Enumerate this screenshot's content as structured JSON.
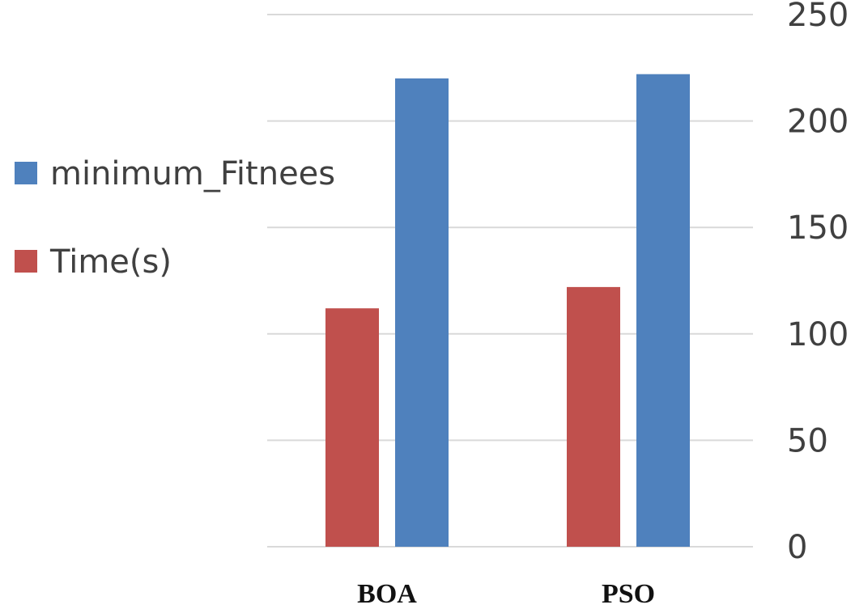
{
  "chart_data": {
    "type": "bar",
    "categories": [
      "BOA",
      "PSO"
    ],
    "series": [
      {
        "name": "Time(s)",
        "values": [
          112,
          122
        ],
        "color": "#c0504d"
      },
      {
        "name": "minimum_Fitnees",
        "values": [
          220,
          222
        ],
        "color": "#4f81bd"
      }
    ],
    "yticks": [
      "0",
      "50",
      "100",
      "150",
      "200",
      "250"
    ],
    "ylim": [
      0,
      250
    ],
    "y_axis_side": "right",
    "grid": true,
    "legend_position": "left",
    "title": "",
    "xlabel": "",
    "ylabel": ""
  }
}
